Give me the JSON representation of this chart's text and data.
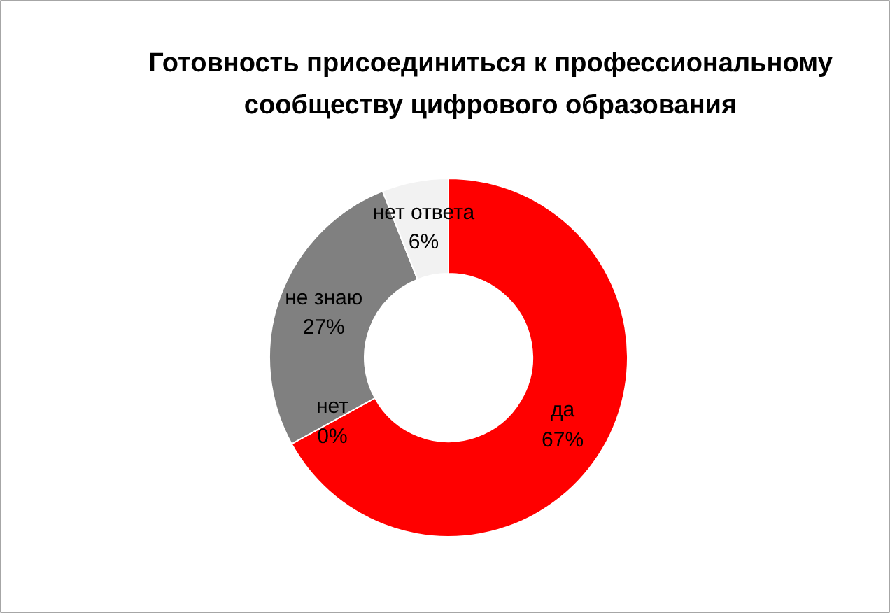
{
  "chart_data": {
    "type": "donut",
    "title": "Готовность присоединиться к профессиональному сообществу цифрового образования",
    "categories": [
      "да",
      "нет",
      "не знаю",
      "нет ответа"
    ],
    "values": [
      67,
      0,
      27,
      6
    ],
    "value_labels": [
      "67%",
      "0%",
      "27%",
      "6%"
    ],
    "colors": [
      "#ff0000",
      "#c00000",
      "#808080",
      "#f2f2f2"
    ]
  }
}
